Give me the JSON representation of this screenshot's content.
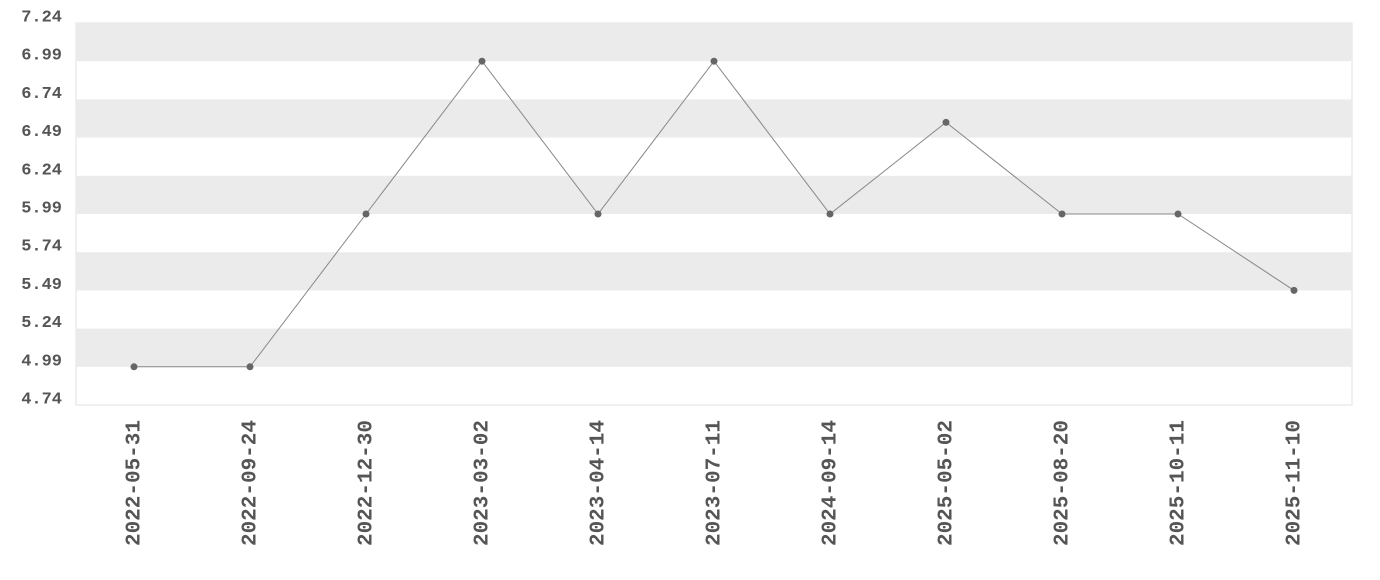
{
  "chart_data": {
    "type": "line",
    "categories": [
      "2022-05-31",
      "2022-09-24",
      "2022-12-30",
      "2023-03-02",
      "2023-04-14",
      "2023-07-11",
      "2024-09-14",
      "2025-05-02",
      "2025-08-20",
      "2025-10-11",
      "2025-11-10"
    ],
    "values": [
      4.99,
      4.99,
      5.99,
      6.99,
      5.99,
      6.99,
      5.99,
      6.59,
      5.99,
      5.99,
      5.49
    ],
    "color": "#888888",
    "marker_color": "#666666",
    "ylim": [
      4.74,
      7.24
    ],
    "yticks": [
      4.74,
      4.99,
      5.24,
      5.49,
      5.74,
      5.99,
      6.24,
      6.49,
      6.74,
      6.99,
      7.24
    ],
    "band_color": "#ebebeb"
  }
}
